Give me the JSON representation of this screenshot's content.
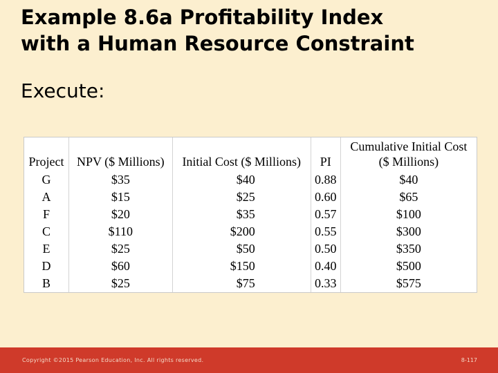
{
  "slide": {
    "title_line1": "Example 8.6a Profitability Index",
    "title_line2": "with a Human Resource Constraint",
    "subtitle": "Execute:"
  },
  "table": {
    "headers": {
      "project": "Project",
      "npv": "NPV ($ Millions)",
      "initial_cost": "Initial Cost ($ Millions)",
      "pi": "PI",
      "cumulative_line1": "Cumulative Initial Cost",
      "cumulative_line2": "($ Millions)"
    },
    "rows": [
      {
        "project": "G",
        "npv": "$35",
        "cost": "$40",
        "pi": "0.88",
        "cumulative": "$40"
      },
      {
        "project": "A",
        "npv": "$15",
        "cost": "$25",
        "pi": "0.60",
        "cumulative": "$65"
      },
      {
        "project": "F",
        "npv": "$20",
        "cost": "$35",
        "pi": "0.57",
        "cumulative": "$100"
      },
      {
        "project": "C",
        "npv": "$110",
        "cost": "$200",
        "pi": "0.55",
        "cumulative": "$300"
      },
      {
        "project": "E",
        "npv": "$25",
        "cost": "$50",
        "pi": "0.50",
        "cumulative": "$350"
      },
      {
        "project": "D",
        "npv": "$60",
        "cost": "$150",
        "pi": "0.40",
        "cumulative": "$500"
      },
      {
        "project": "B",
        "npv": "$25",
        "cost": "$75",
        "pi": "0.33",
        "cumulative": "$575"
      }
    ]
  },
  "footer": {
    "copyright": "Copyright ©2015 Pearson Education, Inc. All rights reserved.",
    "page_number": "8-117"
  }
}
